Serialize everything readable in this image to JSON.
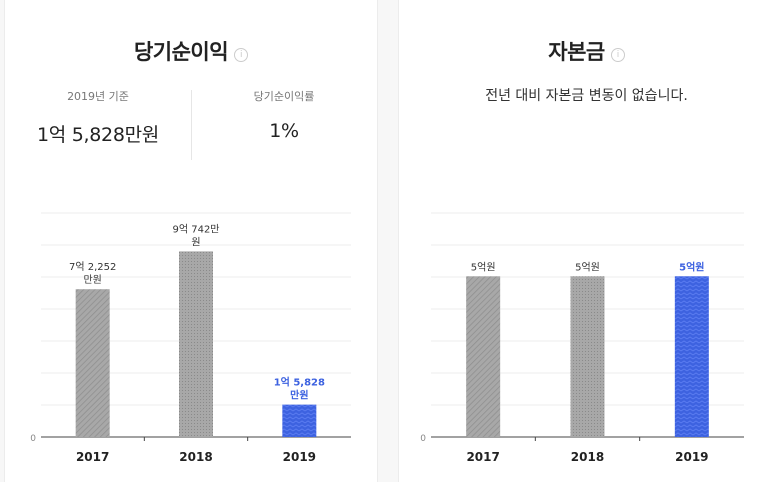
{
  "left": {
    "title": "당기순이익",
    "info_icon": "info-circle-icon",
    "stat1": {
      "label": "2019년 기준",
      "value": "1억 5,828만원"
    },
    "stat2": {
      "label": "당기순이익률",
      "value": "1%"
    },
    "chart_data": {
      "type": "bar",
      "categories": [
        "2017",
        "2018",
        "2019"
      ],
      "values": [
        72252,
        90742,
        15828
      ],
      "data_labels": [
        [
          "7억 2,252",
          "만원"
        ],
        [
          "9억 742만",
          "원"
        ],
        [
          "1억 5,828",
          "만원"
        ]
      ],
      "unit": "만원",
      "ylim": [
        0,
        110000
      ],
      "y_ticks": [
        "0"
      ],
      "highlight_index": 2,
      "colors": {
        "default": "#a8a8a8",
        "highlight": "#3d62e0"
      }
    }
  },
  "right": {
    "title": "자본금",
    "info_icon": "info-circle-icon",
    "notice": "전년 대비 자본금 변동이 없습니다.",
    "chart_data": {
      "type": "bar",
      "categories": [
        "2017",
        "2018",
        "2019"
      ],
      "values": [
        50000,
        50000,
        50000
      ],
      "data_labels": [
        [
          "5억원"
        ],
        [
          "5억원"
        ],
        [
          "5억원"
        ]
      ],
      "unit": "만원",
      "ylim": [
        0,
        70000
      ],
      "y_ticks": [
        "0"
      ],
      "highlight_index": 2,
      "colors": {
        "default": "#a8a8a8",
        "highlight": "#3d62e0"
      }
    }
  }
}
